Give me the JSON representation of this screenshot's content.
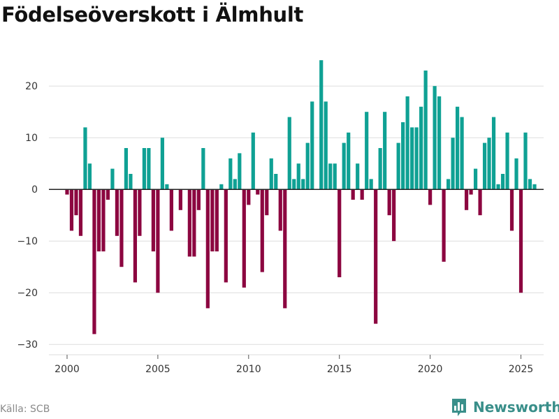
{
  "title": "Födelseöverskott i Älmhult",
  "source": "Källa: SCB",
  "brand": {
    "name": "Newsworthy",
    "icon": "bar-chart-logo-icon",
    "color": "#3a8f8a"
  },
  "colors": {
    "positive": "#0fa194",
    "negative": "#8c0640",
    "grid": "#dddddd",
    "zero_line": "#222222"
  },
  "chart_data": {
    "type": "bar",
    "title": "Födelseöverskott i Älmhult",
    "xlabel": "",
    "ylabel": "",
    "ylim": [
      -32,
      28
    ],
    "xlim": [
      1999,
      2026.25
    ],
    "yticks": [
      -30,
      -20,
      -10,
      0,
      10,
      20
    ],
    "ytick_labels": [
      "−30",
      "−20",
      "−10",
      "0",
      "10",
      "20"
    ],
    "xticks": [
      2000,
      2005,
      2010,
      2015,
      2020,
      2025
    ],
    "xtick_labels": [
      "2000",
      "2005",
      "2010",
      "2015",
      "2020",
      "2025"
    ],
    "frequency": "quarterly",
    "start": 2000.0,
    "series": [
      {
        "name": "Födelseöverskott",
        "values": [
          -1,
          -8,
          -5,
          -9,
          12,
          5,
          -28,
          -12,
          -12,
          -2,
          4,
          -9,
          -15,
          8,
          3,
          -18,
          -9,
          8,
          8,
          -12,
          -20,
          10,
          1,
          -8,
          0,
          -4,
          0,
          -13,
          -13,
          -4,
          8,
          -23,
          -12,
          -12,
          1,
          -18,
          6,
          2,
          7,
          -19,
          -3,
          11,
          -1,
          -16,
          -5,
          6,
          3,
          -8,
          -23,
          14,
          2,
          5,
          2,
          9,
          17,
          0,
          25,
          17,
          5,
          5,
          -17,
          9,
          11,
          -2,
          5,
          -2,
          15,
          2,
          -26,
          8,
          15,
          -5,
          -10,
          9,
          13,
          18,
          12,
          12,
          16,
          23,
          -3,
          20,
          18,
          -14,
          2,
          10,
          16,
          14,
          -4,
          -1,
          4,
          -5,
          9,
          10,
          14,
          1,
          3,
          11,
          -8,
          6,
          -20,
          11,
          2,
          1
        ]
      }
    ]
  }
}
